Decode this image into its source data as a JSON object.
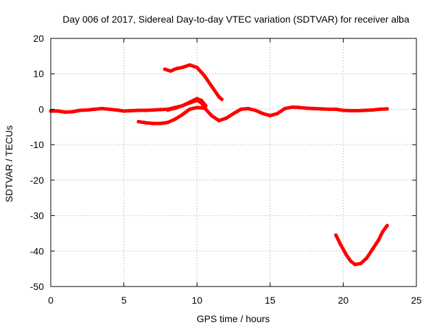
{
  "chart_data": {
    "type": "scatter",
    "title": "Day 006 of 2017, Sidereal Day-to-day VTEC variation (SDTVAR) for receiver alba",
    "xlabel": "GPS time / hours",
    "ylabel": "SDTVAR / TECUs",
    "xlim": [
      0,
      25
    ],
    "ylim": [
      -50,
      20
    ],
    "xticks": [
      0,
      5,
      10,
      15,
      20,
      25
    ],
    "yticks": [
      -50,
      -40,
      -30,
      -20,
      -10,
      0,
      10,
      20
    ],
    "grid": true,
    "legend": "none",
    "series_color": "#ff0000",
    "series": [
      {
        "name": "main-near-zero",
        "points": [
          [
            0.0,
            -0.5
          ],
          [
            0.5,
            -0.5
          ],
          [
            1.0,
            -0.8
          ],
          [
            1.5,
            -0.7
          ],
          [
            2.0,
            -0.3
          ],
          [
            2.5,
            -0.2
          ],
          [
            3.0,
            0.0
          ],
          [
            3.5,
            0.2
          ],
          [
            4.0,
            0.0
          ],
          [
            4.5,
            -0.2
          ],
          [
            5.0,
            -0.5
          ],
          [
            5.5,
            -0.4
          ],
          [
            6.0,
            -0.3
          ],
          [
            6.5,
            -0.3
          ],
          [
            7.0,
            -0.2
          ],
          [
            7.5,
            -0.1
          ],
          [
            8.0,
            0.0
          ],
          [
            8.5,
            0.5
          ],
          [
            9.0,
            1.0
          ],
          [
            9.5,
            1.8
          ],
          [
            10.0,
            2.5
          ],
          [
            10.3,
            1.8
          ],
          [
            10.6,
            0.0
          ],
          [
            11.0,
            -1.8
          ],
          [
            11.5,
            -3.2
          ],
          [
            12.0,
            -2.5
          ],
          [
            12.5,
            -1.2
          ],
          [
            13.0,
            0.0
          ],
          [
            13.5,
            0.2
          ],
          [
            14.0,
            -0.3
          ],
          [
            14.5,
            -1.2
          ],
          [
            15.0,
            -1.8
          ],
          [
            15.5,
            -1.2
          ],
          [
            16.0,
            0.2
          ],
          [
            16.5,
            0.6
          ],
          [
            17.0,
            0.5
          ],
          [
            17.5,
            0.3
          ],
          [
            18.0,
            0.2
          ],
          [
            18.5,
            0.1
          ],
          [
            19.0,
            0.0
          ],
          [
            19.5,
            0.0
          ],
          [
            20.0,
            -0.3
          ],
          [
            20.5,
            -0.4
          ],
          [
            21.0,
            -0.4
          ],
          [
            21.5,
            -0.3
          ],
          [
            22.0,
            -0.2
          ],
          [
            22.5,
            0.0
          ],
          [
            23.0,
            0.1
          ]
        ]
      },
      {
        "name": "lower-branch",
        "points": [
          [
            6.0,
            -3.5
          ],
          [
            6.5,
            -3.8
          ],
          [
            7.0,
            -4.0
          ],
          [
            7.5,
            -4.0
          ],
          [
            8.0,
            -3.7
          ],
          [
            8.5,
            -2.8
          ],
          [
            9.0,
            -1.5
          ],
          [
            9.5,
            0.0
          ],
          [
            10.0,
            0.5
          ],
          [
            10.5,
            0.3
          ]
        ]
      },
      {
        "name": "middle-branch",
        "points": [
          [
            8.0,
            -0.2
          ],
          [
            8.5,
            0.3
          ],
          [
            9.0,
            1.0
          ],
          [
            9.5,
            2.0
          ],
          [
            10.0,
            3.0
          ],
          [
            10.3,
            2.5
          ],
          [
            10.6,
            1.0
          ]
        ]
      },
      {
        "name": "upper-arc",
        "points": [
          [
            7.8,
            11.3
          ],
          [
            8.2,
            10.8
          ],
          [
            8.6,
            11.5
          ],
          [
            9.0,
            11.8
          ],
          [
            9.5,
            12.5
          ],
          [
            10.0,
            11.8
          ],
          [
            10.5,
            9.5
          ],
          [
            11.0,
            6.5
          ],
          [
            11.5,
            3.5
          ],
          [
            11.7,
            2.8
          ]
        ]
      },
      {
        "name": "deep-v",
        "points": [
          [
            19.5,
            -35.5
          ],
          [
            19.8,
            -38.0
          ],
          [
            20.2,
            -41.0
          ],
          [
            20.5,
            -42.8
          ],
          [
            20.8,
            -43.8
          ],
          [
            21.2,
            -43.5
          ],
          [
            21.6,
            -42.0
          ],
          [
            22.0,
            -39.5
          ],
          [
            22.4,
            -37.0
          ],
          [
            22.7,
            -34.5
          ],
          [
            23.0,
            -32.8
          ]
        ]
      }
    ]
  }
}
